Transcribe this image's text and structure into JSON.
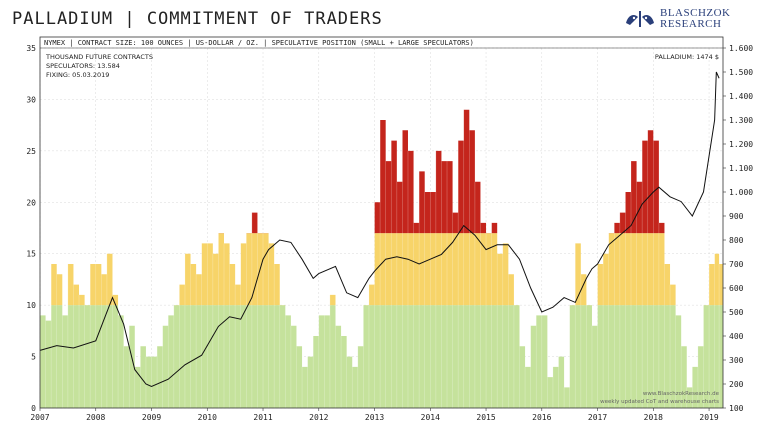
{
  "title": "PALLADIUM | COMMITMENT OF TRADERS",
  "logo": {
    "line1": "BLASCHZOK",
    "line2": "RESEARCH",
    "icon": "bull-bear-logo-icon"
  },
  "chart_data": {
    "type": "area",
    "header": "NYMEX | CONTRACT SIZE: 100 OUNCES | US-DOLLAR / OZ. | SPECULATIVE POSITION (SMALL + LARGE SPECULATORS)",
    "annotations": [
      "THOUSAND FUTURE CONTRACTS",
      "SPECULATORS: 13.584",
      "FIXING: 05.03.2019"
    ],
    "price_label": "PALLADIUM: 1474 $",
    "watermark": [
      "www.BlaschzokResearch.de",
      "weekly updated CoT and warehouse charts"
    ],
    "x_ticks": [
      "2007",
      "2008",
      "2009",
      "2010",
      "2011",
      "2012",
      "2013",
      "2014",
      "2015",
      "2016",
      "2017",
      "2018",
      "2019"
    ],
    "y_left_ticks": [
      "0",
      "5",
      "10",
      "15",
      "20",
      "25",
      "30",
      "35"
    ],
    "y_left_range": [
      0,
      35
    ],
    "y_right_ticks": [
      "100",
      "200",
      "300",
      "400",
      "500",
      "600",
      "700",
      "800",
      "900",
      "1.000",
      "1.100",
      "1.200",
      "1.300",
      "1.400",
      "1.500",
      "1.600"
    ],
    "y_right_range": [
      100,
      1600
    ],
    "color_bands": [
      {
        "from": 0,
        "to": 10,
        "color": "#c5e29c"
      },
      {
        "from": 10,
        "to": 17,
        "color": "#f7d469"
      },
      {
        "from": 17,
        "to": 35,
        "color": "#c4251c"
      }
    ],
    "series": [
      {
        "kind": "speculators_area",
        "x": [
          2007.0,
          2007.1,
          2007.2,
          2007.3,
          2007.4,
          2007.5,
          2007.6,
          2007.7,
          2007.8,
          2007.9,
          2008.0,
          2008.1,
          2008.2,
          2008.3,
          2008.4,
          2008.5,
          2008.6,
          2008.7,
          2008.8,
          2008.9,
          2009.0,
          2009.1,
          2009.2,
          2009.3,
          2009.4,
          2009.5,
          2009.6,
          2009.7,
          2009.8,
          2009.9,
          2010.0,
          2010.1,
          2010.2,
          2010.3,
          2010.4,
          2010.5,
          2010.6,
          2010.7,
          2010.8,
          2010.9,
          2011.0,
          2011.1,
          2011.2,
          2011.3,
          2011.4,
          2011.5,
          2011.6,
          2011.7,
          2011.8,
          2011.9,
          2012.0,
          2012.1,
          2012.2,
          2012.3,
          2012.4,
          2012.5,
          2012.6,
          2012.7,
          2012.8,
          2012.9,
          2013.0,
          2013.1,
          2013.2,
          2013.3,
          2013.4,
          2013.5,
          2013.6,
          2013.7,
          2013.8,
          2013.9,
          2014.0,
          2014.1,
          2014.2,
          2014.3,
          2014.4,
          2014.5,
          2014.6,
          2014.7,
          2014.8,
          2014.9,
          2015.0,
          2015.1,
          2015.2,
          2015.3,
          2015.4,
          2015.5,
          2015.6,
          2015.7,
          2015.8,
          2015.9,
          2016.0,
          2016.1,
          2016.2,
          2016.3,
          2016.4,
          2016.5,
          2016.6,
          2016.7,
          2016.8,
          2016.9,
          2017.0,
          2017.1,
          2017.2,
          2017.3,
          2017.4,
          2017.5,
          2017.6,
          2017.7,
          2017.8,
          2017.9,
          2018.0,
          2018.1,
          2018.2,
          2018.3,
          2018.4,
          2018.5,
          2018.6,
          2018.7,
          2018.8,
          2018.9,
          2019.0,
          2019.1,
          2019.18
        ],
        "values": [
          9,
          8.5,
          14,
          13,
          9,
          14,
          12,
          11,
          10,
          14,
          14,
          13,
          15,
          11,
          9,
          6,
          8,
          4,
          6,
          5,
          5,
          6,
          8,
          9,
          10,
          12,
          15,
          14,
          13,
          16,
          16,
          15,
          17,
          16,
          14,
          12,
          16,
          17,
          19,
          17,
          17,
          16,
          14,
          10,
          9,
          8,
          6,
          4,
          5,
          7,
          9,
          9,
          11,
          8,
          7,
          5,
          4,
          6,
          10,
          12,
          20,
          28,
          24,
          26,
          22,
          27,
          25,
          18,
          23,
          21,
          21,
          25,
          24,
          24,
          19,
          26,
          29,
          27,
          22,
          18,
          17,
          18,
          15,
          16,
          13,
          10,
          6,
          4,
          8,
          9,
          9,
          3,
          4,
          5,
          2,
          10,
          16,
          13,
          10,
          8,
          14,
          15,
          17,
          18,
          19,
          21,
          24,
          22,
          26,
          27,
          26,
          18,
          14,
          12,
          9,
          6,
          2,
          4,
          6,
          10,
          14,
          15,
          14
        ]
      },
      {
        "kind": "price_line",
        "name": "PALLADIUM",
        "x": [
          2007.0,
          2007.3,
          2007.6,
          2008.0,
          2008.1,
          2008.3,
          2008.5,
          2008.7,
          2008.9,
          2009.0,
          2009.3,
          2009.6,
          2009.9,
          2010.0,
          2010.2,
          2010.4,
          2010.6,
          2010.8,
          2011.0,
          2011.1,
          2011.3,
          2011.5,
          2011.7,
          2011.9,
          2012.0,
          2012.3,
          2012.5,
          2012.7,
          2012.9,
          2013.0,
          2013.2,
          2013.4,
          2013.6,
          2013.8,
          2014.0,
          2014.2,
          2014.4,
          2014.6,
          2014.8,
          2015.0,
          2015.2,
          2015.4,
          2015.6,
          2015.8,
          2016.0,
          2016.2,
          2016.4,
          2016.6,
          2016.8,
          2016.9,
          2017.0,
          2017.2,
          2017.4,
          2017.6,
          2017.8,
          2018.0,
          2018.1,
          2018.3,
          2018.5,
          2018.7,
          2018.9,
          2019.0,
          2019.1,
          2019.13,
          2019.18
        ],
        "values": [
          340,
          360,
          350,
          380,
          440,
          560,
          450,
          260,
          200,
          190,
          220,
          280,
          320,
          360,
          440,
          480,
          470,
          560,
          720,
          760,
          800,
          790,
          720,
          640,
          660,
          690,
          580,
          560,
          640,
          670,
          720,
          730,
          720,
          700,
          720,
          740,
          790,
          860,
          820,
          760,
          780,
          780,
          720,
          600,
          500,
          520,
          560,
          540,
          640,
          680,
          700,
          780,
          820,
          860,
          950,
          1000,
          1020,
          980,
          960,
          900,
          1000,
          1150,
          1300,
          1500,
          1474
        ]
      }
    ]
  }
}
